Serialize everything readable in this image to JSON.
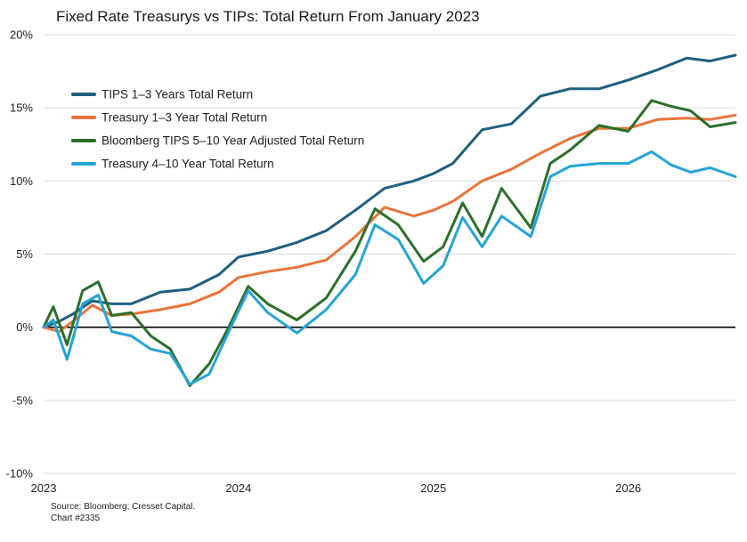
{
  "title": "Fixed Rate Treasurys vs TIPs: Total Return From January 2023",
  "source": "Source: Bloomberg; Cresset Capital.",
  "chart_number": "Chart #2335",
  "colors": {
    "tips13": "#1f5f7f",
    "tsy13": "#e8743b",
    "tips510": "#2c6e2c",
    "tsy410": "#25a3d8",
    "zero_line": "#000000",
    "grid": "#d9d9d9"
  },
  "chart_data": {
    "type": "line",
    "title": "Fixed Rate Treasurys vs TIPs: Total Return From January 2023",
    "xlabel": "",
    "ylabel": "",
    "xlim": [
      2023.0,
      2026.55
    ],
    "ylim": [
      -10,
      20
    ],
    "y_ticks": [
      -10,
      -5,
      0,
      5,
      10,
      15,
      20
    ],
    "y_tick_labels": [
      "-10%",
      "-5%",
      "0%",
      "5%",
      "10%",
      "15%",
      "20%"
    ],
    "x_ticks": [
      2023,
      2024,
      2025,
      2026
    ],
    "x_tick_labels": [
      "2023",
      "2024",
      "2025",
      "2026"
    ],
    "grid": true,
    "legend_position": "top-left",
    "series": [
      {
        "name": "TIPS 1–3 Years Total Return",
        "color_key": "tips13",
        "x": [
          2023.0,
          2023.08,
          2023.15,
          2023.25,
          2023.35,
          2023.45,
          2023.6,
          2023.75,
          2023.9,
          2024.0,
          2024.15,
          2024.3,
          2024.45,
          2024.6,
          2024.75,
          2024.9,
          2025.0,
          2025.1,
          2025.25,
          2025.4,
          2025.55,
          2025.7,
          2025.85,
          2026.0,
          2026.15,
          2026.3,
          2026.42,
          2026.55
        ],
        "values": [
          0.0,
          0.4,
          0.9,
          1.8,
          1.6,
          1.6,
          2.4,
          2.6,
          3.6,
          4.8,
          5.2,
          5.8,
          6.6,
          8.0,
          9.5,
          10.0,
          10.5,
          11.2,
          13.5,
          13.9,
          15.8,
          16.3,
          16.3,
          16.9,
          17.6,
          18.4,
          18.2,
          18.6
        ]
      },
      {
        "name": "Treasury 1–3 Year Total Return",
        "color_key": "tsy13",
        "x": [
          2023.0,
          2023.08,
          2023.15,
          2023.25,
          2023.35,
          2023.45,
          2023.6,
          2023.75,
          2023.9,
          2024.0,
          2024.15,
          2024.3,
          2024.45,
          2024.6,
          2024.75,
          2024.9,
          2025.0,
          2025.1,
          2025.25,
          2025.4,
          2025.55,
          2025.7,
          2025.85,
          2026.0,
          2026.15,
          2026.3,
          2026.42,
          2026.55
        ],
        "values": [
          0.0,
          -0.3,
          0.4,
          1.5,
          0.8,
          0.9,
          1.2,
          1.6,
          2.4,
          3.4,
          3.8,
          4.1,
          4.6,
          6.2,
          8.2,
          7.6,
          8.0,
          8.6,
          10.0,
          10.8,
          11.9,
          12.9,
          13.6,
          13.6,
          14.2,
          14.3,
          14.2,
          14.5
        ]
      },
      {
        "name": "Bloomberg TIPS 5–10 Year Adjusted Total Return",
        "color_key": "tips510",
        "x": [
          2023.0,
          2023.05,
          2023.12,
          2023.2,
          2023.28,
          2023.35,
          2023.45,
          2023.55,
          2023.65,
          2023.75,
          2023.85,
          2023.95,
          2024.05,
          2024.15,
          2024.3,
          2024.45,
          2024.6,
          2024.7,
          2024.82,
          2024.95,
          2025.05,
          2025.15,
          2025.25,
          2025.35,
          2025.5,
          2025.6,
          2025.7,
          2025.85,
          2026.0,
          2026.12,
          2026.22,
          2026.32,
          2026.42,
          2026.55
        ],
        "values": [
          0.0,
          1.4,
          -1.2,
          2.5,
          3.1,
          0.8,
          1.0,
          -0.6,
          -1.5,
          -4.0,
          -2.5,
          0.0,
          2.8,
          1.6,
          0.5,
          2.0,
          5.2,
          8.1,
          7.0,
          4.5,
          5.5,
          8.5,
          6.2,
          9.5,
          6.8,
          11.2,
          12.1,
          13.8,
          13.4,
          15.5,
          15.1,
          14.8,
          13.7,
          14.0
        ]
      },
      {
        "name": "Treasury 4–10 Year Total Return",
        "color_key": "tsy410",
        "x": [
          2023.0,
          2023.05,
          2023.12,
          2023.2,
          2023.28,
          2023.35,
          2023.45,
          2023.55,
          2023.65,
          2023.75,
          2023.85,
          2023.95,
          2024.05,
          2024.15,
          2024.3,
          2024.45,
          2024.6,
          2024.7,
          2024.82,
          2024.95,
          2025.05,
          2025.15,
          2025.25,
          2025.35,
          2025.5,
          2025.6,
          2025.7,
          2025.85,
          2026.0,
          2026.12,
          2026.22,
          2026.32,
          2026.42,
          2026.55
        ],
        "values": [
          0.0,
          0.5,
          -2.2,
          1.6,
          2.2,
          -0.3,
          -0.6,
          -1.5,
          -1.8,
          -3.9,
          -3.2,
          -0.3,
          2.5,
          1.0,
          -0.4,
          1.2,
          3.6,
          7.0,
          6.0,
          3.0,
          4.2,
          7.5,
          5.5,
          7.6,
          6.2,
          10.3,
          11.0,
          11.2,
          11.2,
          12.0,
          11.1,
          10.6,
          10.9,
          10.3
        ]
      }
    ]
  }
}
